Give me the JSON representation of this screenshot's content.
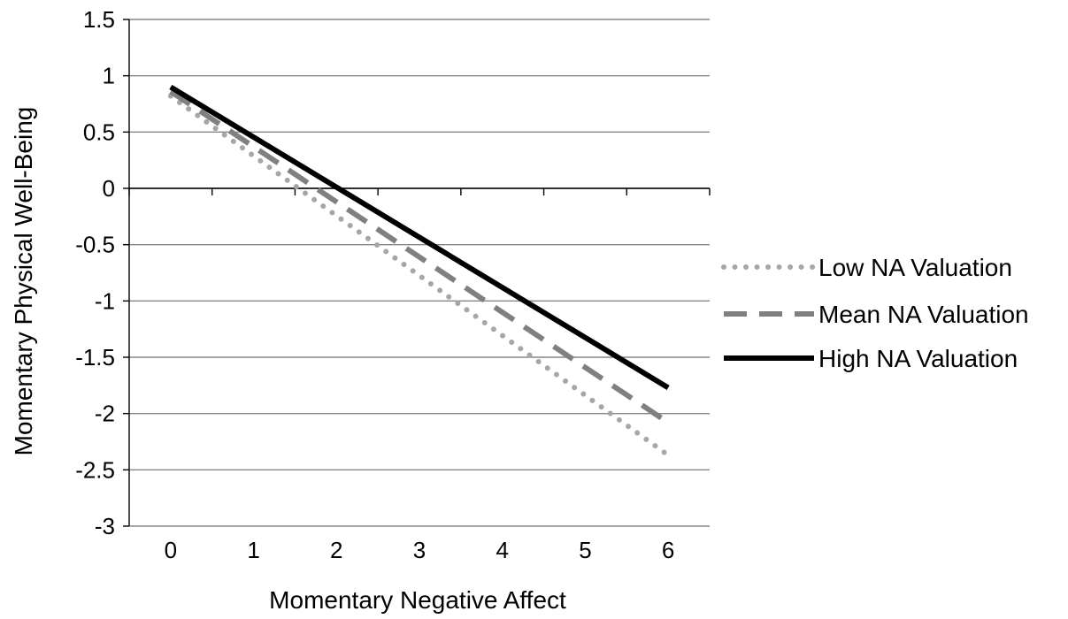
{
  "chart_data": {
    "type": "line",
    "title": "",
    "xlabel": "Momentary Negative Affect",
    "ylabel": "Momentary Physical Well-Being",
    "x": [
      0,
      6
    ],
    "x_ticks": [
      "0",
      "1",
      "2",
      "3",
      "4",
      "5",
      "6"
    ],
    "xlim": [
      -0.5,
      6.5
    ],
    "ylim": [
      -3,
      1.5
    ],
    "y_ticks": [
      "1.5",
      "1",
      "0.5",
      "0",
      "-0.5",
      "-1",
      "-1.5",
      "-2",
      "-2.5",
      "-3"
    ],
    "grid": "horizontal",
    "legend_position": "right",
    "series": [
      {
        "name": "Low NA Valuation",
        "values": [
          0.82,
          -2.37
        ],
        "style": "dotted",
        "color": "#a6a6a6"
      },
      {
        "name": "Mean NA Valuation",
        "values": [
          0.86,
          -2.08
        ],
        "style": "dashed",
        "color": "#808080"
      },
      {
        "name": "High NA Valuation",
        "values": [
          0.9,
          -1.77
        ],
        "style": "solid",
        "color": "#000000"
      }
    ]
  }
}
